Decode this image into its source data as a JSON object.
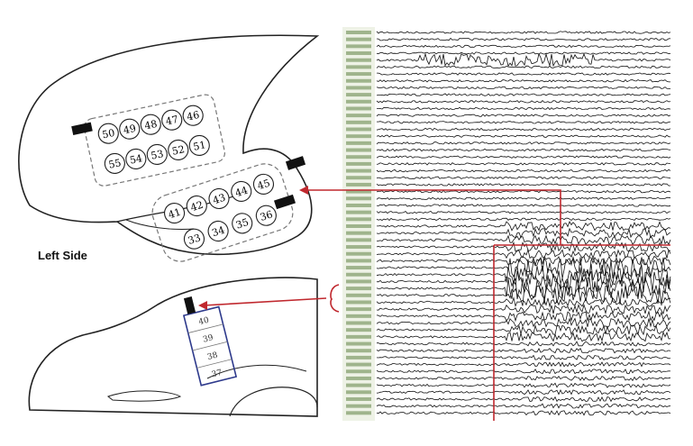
{
  "figure": {
    "side_label": "Left Side",
    "grid_upper_row": [
      "50",
      "49",
      "48",
      "47",
      "46"
    ],
    "grid_lower_row": [
      "55",
      "54",
      "53",
      "52",
      "51"
    ],
    "strip_top_row": [
      "41",
      "42",
      "43",
      "44",
      "45"
    ],
    "strip_bottom_row": [
      "33",
      "34",
      "35",
      "36"
    ],
    "depth_electrodes": [
      "40",
      "39",
      "38",
      "37"
    ]
  },
  "colors": {
    "connector": "#c0282e",
    "depth_frame": "#2e3a8c",
    "outline": "#222222",
    "trace": "#111111",
    "channel_labels": "#6d8f5c"
  },
  "eeg": {
    "channel_count": 56,
    "ictal_onset_marker": "red vertical line with arrow to temporal strip electrodes"
  }
}
